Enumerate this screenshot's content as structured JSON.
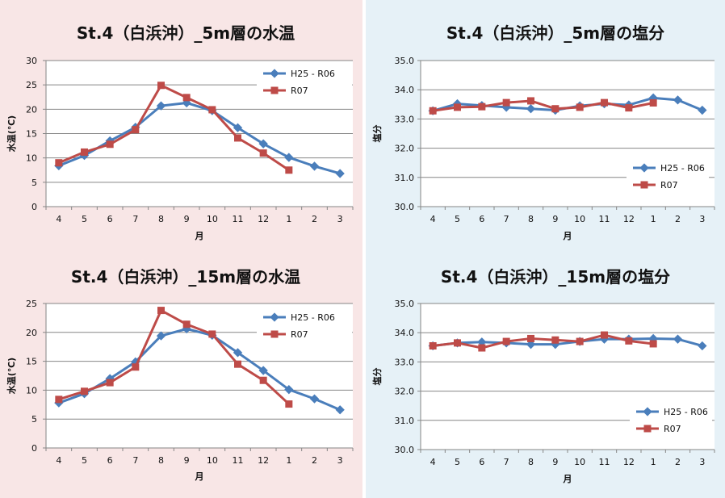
{
  "colors": {
    "series_a": "#4a7ebb",
    "series_b": "#be4b48",
    "grid": "#868686",
    "axis": "#868686",
    "left_bg": "#f8e6e6",
    "right_bg": "#e6f1f7"
  },
  "chart_data": [
    {
      "id": "temp5",
      "type": "line",
      "title": "St.4（白浜沖）_5m層の水温",
      "xlabel": "月",
      "ylabel": "水温(℃)",
      "categories": [
        "4",
        "5",
        "6",
        "7",
        "8",
        "9",
        "10",
        "11",
        "12",
        "1",
        "2",
        "3"
      ],
      "ylim": [
        0,
        30
      ],
      "yticks": [
        "0",
        "5",
        "10",
        "15",
        "20",
        "25",
        "30"
      ],
      "ytick_values": [
        0,
        5,
        10,
        15,
        20,
        25,
        30
      ],
      "grid": true,
      "legend": "top-right",
      "series": [
        {
          "name": "H25 - R06",
          "values": [
            8.4,
            10.5,
            13.5,
            16.3,
            20.7,
            21.3,
            19.7,
            16.2,
            12.9,
            10.1,
            8.3,
            6.8
          ]
        },
        {
          "name": "R07",
          "values": [
            9.0,
            11.2,
            12.8,
            15.8,
            24.9,
            22.4,
            19.9,
            14.1,
            11.0,
            7.5,
            null,
            null
          ]
        }
      ]
    },
    {
      "id": "sal5",
      "type": "line",
      "title": "St.4（白浜沖）_5m層の塩分",
      "xlabel": "月",
      "ylabel": "塩分",
      "categories": [
        "4",
        "5",
        "6",
        "7",
        "8",
        "9",
        "10",
        "11",
        "12",
        "1",
        "2",
        "3"
      ],
      "ylim": [
        30,
        35
      ],
      "yticks": [
        "30.0",
        "31.0",
        "32.0",
        "33.0",
        "34.0",
        "35.0"
      ],
      "ytick_values": [
        30,
        31,
        32,
        33,
        34,
        35
      ],
      "grid": true,
      "legend": "bottom-right",
      "series": [
        {
          "name": "H25 - R06",
          "values": [
            33.28,
            33.52,
            33.46,
            33.4,
            33.35,
            33.3,
            33.45,
            33.52,
            33.48,
            33.72,
            33.65,
            33.3
          ]
        },
        {
          "name": "R07",
          "values": [
            33.28,
            33.4,
            33.42,
            33.56,
            33.62,
            33.35,
            33.4,
            33.56,
            33.38,
            33.55,
            null,
            null
          ]
        }
      ]
    },
    {
      "id": "temp15",
      "type": "line",
      "title": "St.4（白浜沖）_15m層の水温",
      "xlabel": "月",
      "ylabel": "水温(℃)",
      "categories": [
        "4",
        "5",
        "6",
        "7",
        "8",
        "9",
        "10",
        "11",
        "12",
        "1",
        "2",
        "3"
      ],
      "ylim": [
        0,
        25
      ],
      "yticks": [
        "0",
        "5",
        "10",
        "15",
        "20",
        "25"
      ],
      "ytick_values": [
        0,
        5,
        10,
        15,
        20,
        25
      ],
      "grid": true,
      "legend": "top-right",
      "series": [
        {
          "name": "H25 - R06",
          "values": [
            7.8,
            9.4,
            12.0,
            14.9,
            19.4,
            20.6,
            19.5,
            16.5,
            13.4,
            10.1,
            8.5,
            6.6
          ]
        },
        {
          "name": "R07",
          "values": [
            8.4,
            9.8,
            11.3,
            14.0,
            23.8,
            21.4,
            19.7,
            14.5,
            11.7,
            7.6,
            null,
            null
          ]
        }
      ]
    },
    {
      "id": "sal15",
      "type": "line",
      "title": "St.4（白浜沖）_15m層の塩分",
      "xlabel": "月",
      "ylabel": "塩分",
      "categories": [
        "4",
        "5",
        "6",
        "7",
        "8",
        "9",
        "10",
        "11",
        "12",
        "1",
        "2",
        "3"
      ],
      "ylim": [
        30,
        35
      ],
      "yticks": [
        "30.0",
        "31.0",
        "32.0",
        "33.0",
        "34.0",
        "35.0"
      ],
      "ytick_values": [
        30,
        31,
        32,
        33,
        34,
        35
      ],
      "grid": true,
      "legend": "bottom-right",
      "series": [
        {
          "name": "H25 - R06",
          "values": [
            33.55,
            33.65,
            33.68,
            33.65,
            33.6,
            33.6,
            33.7,
            33.78,
            33.78,
            33.8,
            33.78,
            33.55
          ]
        },
        {
          "name": "R07",
          "values": [
            33.55,
            33.65,
            33.48,
            33.7,
            33.8,
            33.75,
            33.7,
            33.92,
            33.72,
            33.62,
            null,
            null
          ]
        }
      ]
    }
  ]
}
